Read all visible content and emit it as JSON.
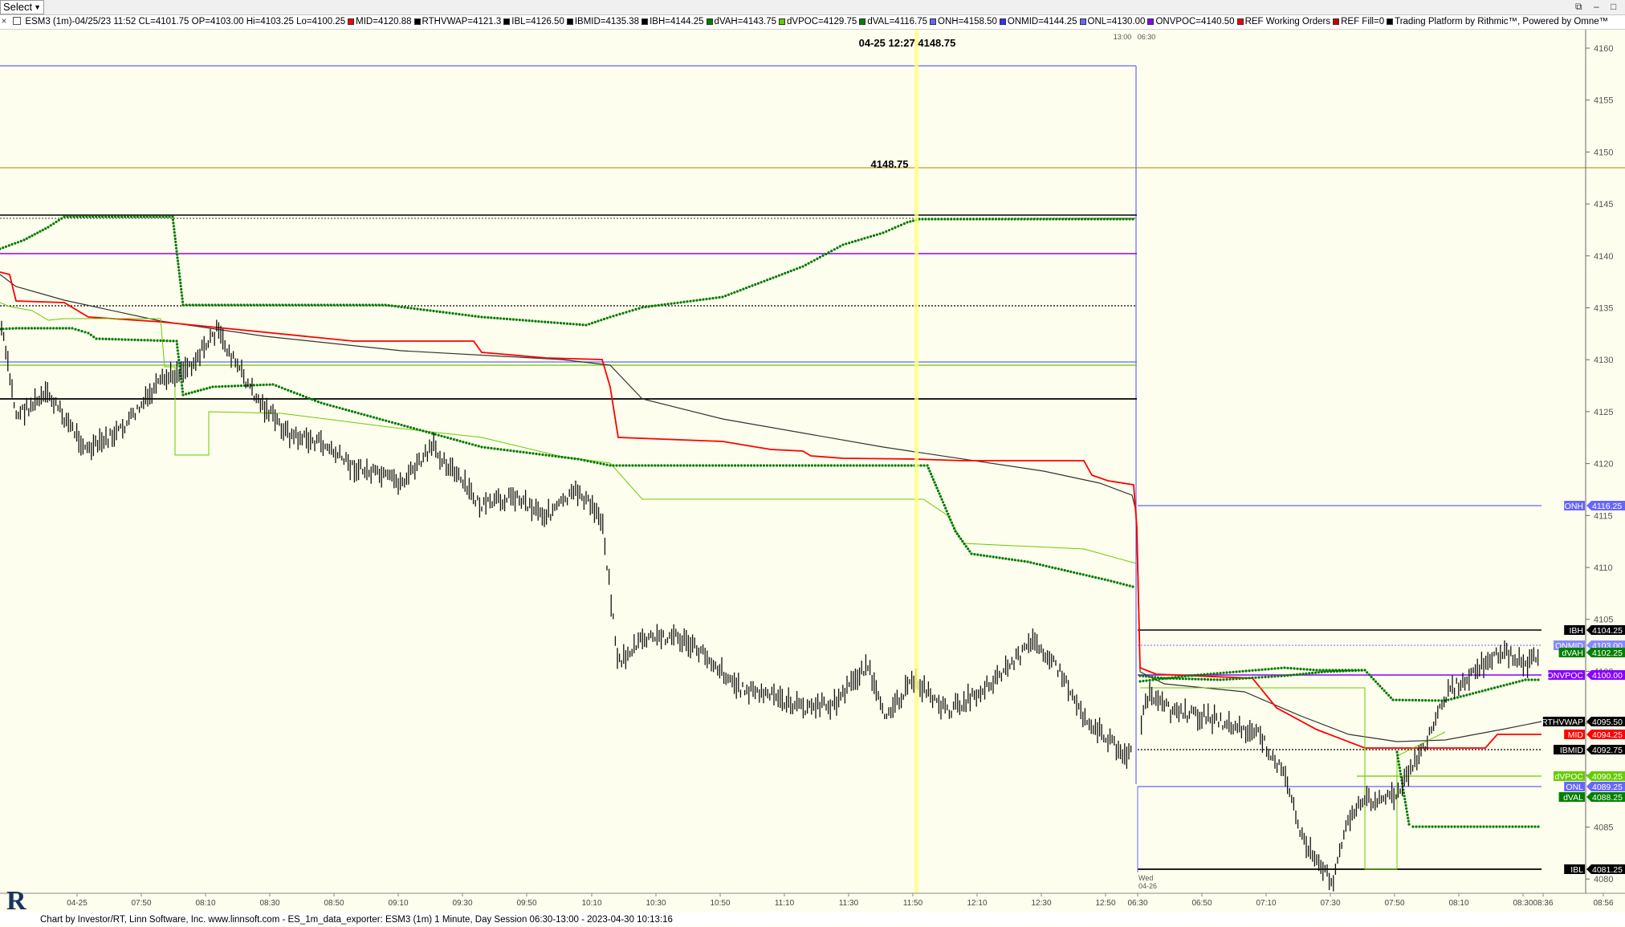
{
  "toolbar": {
    "select_label": "Select"
  },
  "title_items": [
    {
      "text": "ESM3 (1m)-04/25/23 11:52 CL=4101.75 OP=4103.00 Hi=4103.25 Lo=4100.25",
      "color": "#000000"
    },
    {
      "text": "MID=4120.88",
      "color": "#ff0000"
    },
    {
      "text": "RTHVWAP=4121.3",
      "color": "#000000"
    },
    {
      "text": "IBL=4126.50",
      "color": "#000000"
    },
    {
      "text": "IBMID=4135.38",
      "color": "#000000"
    },
    {
      "text": "IBH=4144.25",
      "color": "#000000"
    },
    {
      "text": "dVAH=4143.75",
      "color": "#008000"
    },
    {
      "text": "dVPOC=4129.75",
      "color": "#66cc00"
    },
    {
      "text": "dVAL=4116.75",
      "color": "#008000"
    },
    {
      "text": "ONH=4158.50",
      "color": "#6666ff"
    },
    {
      "text": "ONMID=4144.25",
      "color": "#3333ff"
    },
    {
      "text": "ONL=4130.00",
      "color": "#6666ff"
    },
    {
      "text": "ONVPOC=4140.50",
      "color": "#8800ff"
    },
    {
      "text": "REF Working Orders",
      "color": "#ff0000"
    },
    {
      "text": "REF Fill=0",
      "color": "#cc0000"
    },
    {
      "text": "Trading Platform by Rithmic™, Powered by Omne™",
      "color": "#000000"
    }
  ],
  "cursor": {
    "readout": "04-25 12:27  4148.75",
    "price_label": "4148.75",
    "time_top_a": "13:00",
    "time_top_b": "06:30"
  },
  "y_axis": {
    "ticks": [
      4080,
      4085,
      4090,
      4095,
      4100,
      4105,
      4110,
      4115,
      4120,
      4125,
      4130,
      4135,
      4140,
      4145,
      4150,
      4155,
      4160
    ]
  },
  "x_axis": {
    "labels": [
      "04-25",
      "07:50",
      "08:10",
      "08:30",
      "08:50",
      "09:10",
      "09:30",
      "09:50",
      "10:10",
      "10:30",
      "10:50",
      "11:10",
      "11:30",
      "11:50",
      "12:10",
      "12:30",
      "12:50",
      "06:30",
      "06:50",
      "07:10",
      "07:30",
      "07:50",
      "08:10",
      "08:30",
      "08:36",
      "08:56"
    ],
    "day_label": "Wed",
    "day_date": "04-26"
  },
  "price_tags": [
    {
      "name": "ONH",
      "value": "4116.25",
      "bg": "#6666ff"
    },
    {
      "name": "IBH",
      "value": "4104.25",
      "bg": "#000000"
    },
    {
      "name": "ONMID",
      "value": "4103.00",
      "bg": "#8888ff"
    },
    {
      "name": "dVAH",
      "value": "4102.25",
      "bg": "#008000"
    },
    {
      "name": "ONVPOC",
      "value": "4100.00",
      "bg": "#8800ff"
    },
    {
      "name": "RTHVWAP",
      "value": "4095.50",
      "bg": "#000000"
    },
    {
      "name": "MID",
      "value": "4094.25",
      "bg": "#ff0000"
    },
    {
      "name": "IBMID",
      "value": "4092.75",
      "bg": "#000000"
    },
    {
      "name": "dVPOC",
      "value": "4090.25",
      "bg": "#66cc00"
    },
    {
      "name": "ONL",
      "value": "4089.25",
      "bg": "#6666ff"
    },
    {
      "name": "dVAL",
      "value": "4088.25",
      "bg": "#008000"
    },
    {
      "name": "IBL",
      "value": "4081.25",
      "bg": "#000000"
    }
  ],
  "footer": {
    "text": "Chart by Investor/RT, Linn Software, Inc. www.linnsoft.com - ES_1m_data_exporter: ESM3 (1m) 1 Minute, Day Session 06:30-13:00 - 2023-04-30 10:13:16"
  }
}
